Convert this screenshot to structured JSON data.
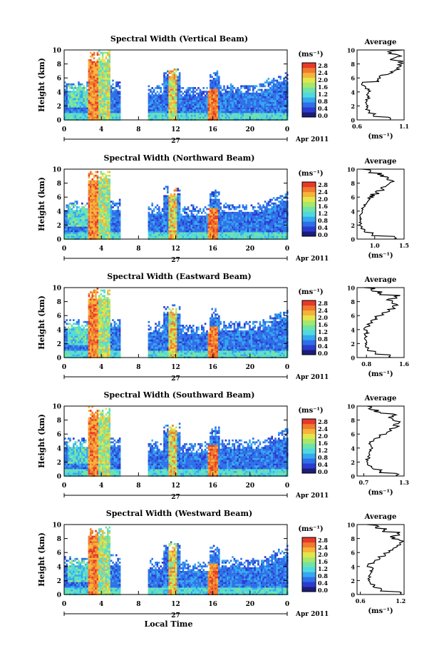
{
  "figure": {
    "x_axis_label": "Local Time",
    "date_label": "Apr 2011",
    "day_label": "27",
    "height_label": "Height (km)",
    "unit_label": "(ms⁻¹)",
    "average_title": "Average",
    "colorbar_ticks": [
      "2.8",
      "2.4",
      "2.0",
      "1.6",
      "1.2",
      "0.8",
      "0.4",
      "0.0"
    ],
    "colorbar_colors": [
      "#1c1c7a",
      "#2b3bd0",
      "#2f6fe8",
      "#35a8f0",
      "#4fd8e0",
      "#6fe3a8",
      "#a6e86a",
      "#e3e64a",
      "#f6b33a",
      "#f07a2e",
      "#e8382a"
    ],
    "time_ticks": [
      "0",
      "4",
      "8",
      "12",
      "16",
      "20",
      "0"
    ],
    "height_ticks": [
      "0",
      "2",
      "4",
      "6",
      "8",
      "10"
    ],
    "accent_colors": {
      "low": "#2b3bd0",
      "mid": "#4fd8e0",
      "high": "#e8382a",
      "axis": "#000000"
    }
  },
  "chart_data": [
    {
      "type": "heatmap",
      "title": "Spectral Width (Vertical Beam)",
      "xlabel": "",
      "ylabel": "Height (km)",
      "xlim": [
        0,
        24
      ],
      "ylim": [
        0,
        10
      ],
      "clim": [
        0,
        2.8
      ],
      "average_profile": {
        "title": "Average",
        "xlabel": "(ms⁻¹)",
        "xticks": [
          "0.6",
          "1.1"
        ],
        "xlim": [
          0.6,
          1.1
        ],
        "height": [
          0,
          0.5,
          1,
          1.5,
          2,
          2.5,
          3,
          3.5,
          4,
          4.5,
          5,
          5.5,
          6,
          6.5,
          7,
          7.5,
          8,
          8.5,
          9,
          9.5,
          10
        ],
        "value": [
          0.95,
          0.78,
          0.72,
          0.7,
          0.71,
          0.7,
          0.72,
          0.71,
          0.73,
          0.68,
          0.66,
          0.82,
          0.86,
          0.95,
          1.02,
          1.05,
          1.06,
          0.98,
          1.04,
          0.95,
          1.05
        ]
      }
    },
    {
      "type": "heatmap",
      "title": "Spectral Width (Northward Beam)",
      "xlabel": "",
      "ylabel": "Height (km)",
      "xlim": [
        0,
        24
      ],
      "ylim": [
        0,
        10
      ],
      "clim": [
        0,
        2.8
      ],
      "average_profile": {
        "title": "Average",
        "xlabel": "(ms⁻¹)",
        "xticks": [
          "1.0",
          "1.5"
        ],
        "xlim": [
          0.7,
          1.5
        ],
        "height": [
          0,
          0.5,
          1,
          1.5,
          2,
          2.5,
          3,
          3.5,
          4,
          4.5,
          5,
          5.5,
          6,
          6.5,
          7,
          7.5,
          8,
          8.5,
          9,
          9.5,
          10
        ],
        "value": [
          1.35,
          0.95,
          0.82,
          0.78,
          0.76,
          0.77,
          0.76,
          0.78,
          0.8,
          0.82,
          0.86,
          0.9,
          0.96,
          1.05,
          1.15,
          1.22,
          1.3,
          1.25,
          1.1,
          0.95,
          0.78
        ]
      }
    },
    {
      "type": "heatmap",
      "title": "Spectral Width (Eastward Beam)",
      "xlabel": "",
      "ylabel": "Height (km)",
      "xlim": [
        0,
        24
      ],
      "ylim": [
        0,
        10
      ],
      "clim": [
        0,
        2.8
      ],
      "average_profile": {
        "title": "Average",
        "xlabel": "(ms⁻¹)",
        "xticks": [
          "0.8",
          "1.6"
        ],
        "xlim": [
          0.6,
          1.6
        ],
        "height": [
          0,
          0.5,
          1,
          1.5,
          2,
          2.5,
          3,
          3.5,
          4,
          4.5,
          5,
          5.5,
          6,
          6.5,
          7,
          7.5,
          8,
          8.5,
          9,
          9.5,
          10
        ],
        "value": [
          1.3,
          1.0,
          0.85,
          0.78,
          0.8,
          0.76,
          0.78,
          0.82,
          0.76,
          0.84,
          0.92,
          1.0,
          1.1,
          1.25,
          1.35,
          1.4,
          1.3,
          1.45,
          1.1,
          0.95,
          0.75
        ]
      }
    },
    {
      "type": "heatmap",
      "title": "Spectral Width (Southward Beam)",
      "xlabel": "",
      "ylabel": "Height (km)",
      "xlim": [
        0,
        24
      ],
      "ylim": [
        0,
        10
      ],
      "clim": [
        0,
        2.8
      ],
      "average_profile": {
        "title": "Average",
        "xlabel": "(ms⁻¹)",
        "xticks": [
          "0.7",
          "1.3"
        ],
        "xlim": [
          0.6,
          1.3
        ],
        "height": [
          0,
          0.5,
          1,
          1.5,
          2,
          2.5,
          3,
          3.5,
          4,
          4.5,
          5,
          5.5,
          6,
          6.5,
          7,
          7.5,
          8,
          8.5,
          9,
          9.5,
          10
        ],
        "value": [
          1.2,
          0.95,
          0.82,
          0.76,
          0.75,
          0.77,
          0.78,
          0.8,
          0.82,
          0.78,
          0.86,
          0.95,
          1.05,
          1.12,
          1.18,
          1.2,
          1.1,
          1.15,
          0.9,
          0.8,
          0.78
        ]
      }
    },
    {
      "type": "heatmap",
      "title": "Spectral Width (Westward Beam)",
      "xlabel": "",
      "ylabel": "Height (km)",
      "xlim": [
        0,
        24
      ],
      "ylim": [
        0,
        10
      ],
      "clim": [
        0,
        2.8
      ],
      "average_profile": {
        "title": "Average",
        "xlabel": "(ms⁻¹)",
        "xticks": [
          "0.6",
          "1.2"
        ],
        "xlim": [
          0.55,
          1.25
        ],
        "height": [
          0,
          0.5,
          1,
          1.5,
          2,
          2.5,
          3,
          3.5,
          4,
          4.5,
          5,
          5.5,
          6,
          6.5,
          7,
          7.5,
          8,
          8.5,
          9,
          9.5,
          10
        ],
        "value": [
          1.2,
          0.92,
          0.8,
          0.74,
          0.72,
          0.74,
          0.76,
          0.78,
          0.72,
          0.8,
          0.88,
          0.96,
          1.04,
          1.1,
          1.15,
          1.2,
          1.08,
          1.18,
          0.95,
          0.82,
          0.75
        ]
      }
    }
  ]
}
